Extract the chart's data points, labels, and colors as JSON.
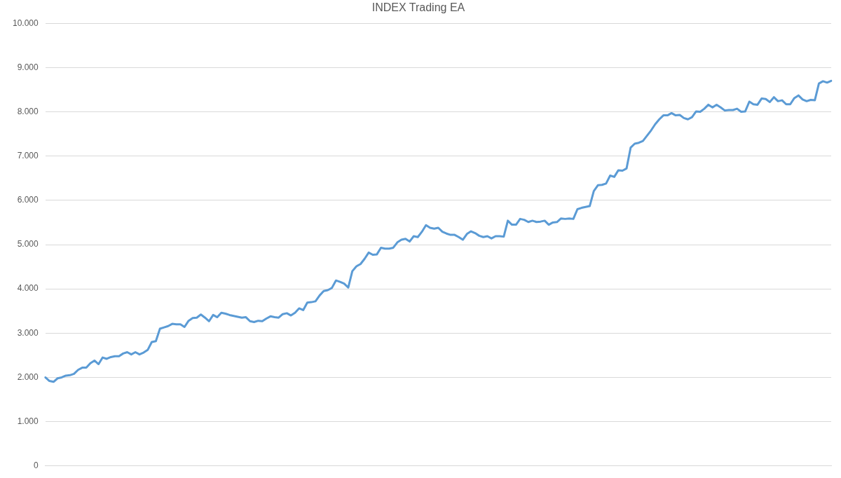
{
  "chart_data": {
    "type": "line",
    "title": "INDEX Trading EA",
    "categories": [
      null,
      null,
      null,
      null,
      null,
      null,
      null,
      null,
      null,
      null,
      null,
      null,
      null,
      null,
      null,
      null,
      null,
      null,
      null,
      null,
      null,
      null,
      null,
      null,
      null,
      null,
      null,
      null,
      null,
      null,
      null,
      null,
      null,
      null,
      null,
      null,
      null,
      null,
      null,
      null,
      null,
      null,
      null,
      null,
      null,
      null,
      null,
      null,
      null,
      null,
      null,
      null,
      null,
      null,
      null,
      null,
      null,
      null,
      null,
      null,
      null,
      null,
      null,
      null,
      null,
      null,
      null,
      null,
      null,
      null,
      null,
      null,
      null,
      null,
      null,
      null,
      null,
      null,
      null,
      null,
      null,
      null,
      null,
      null,
      null,
      null,
      null,
      null,
      null,
      null,
      null,
      null,
      null,
      null,
      null,
      null,
      null,
      null,
      null,
      null,
      null,
      null,
      null,
      null,
      null,
      null,
      null,
      null,
      null,
      null,
      null,
      null,
      null,
      null,
      null,
      null,
      null,
      null,
      null,
      null,
      null,
      null,
      null,
      null,
      null,
      null,
      null,
      null,
      null,
      null,
      null,
      null,
      null,
      null,
      null,
      null,
      null,
      null,
      null,
      null,
      null,
      null,
      null,
      null,
      null,
      null,
      null,
      null,
      null,
      null,
      null,
      null,
      null,
      null,
      null,
      null,
      null,
      null,
      null,
      null,
      null,
      null,
      null,
      null,
      null,
      null,
      null,
      null,
      null,
      null,
      null,
      null,
      null,
      null,
      null,
      null,
      null,
      null,
      null,
      null,
      null,
      null,
      null,
      null,
      null,
      null,
      null,
      null,
      null,
      null,
      null,
      null,
      null
    ],
    "series": [
      {
        "color": "#5b9bd5",
        "values": [
          2000,
          1920,
          1900,
          1980,
          2000,
          2040,
          2050,
          2080,
          2170,
          2220,
          2220,
          2320,
          2380,
          2300,
          2450,
          2420,
          2460,
          2480,
          2480,
          2540,
          2570,
          2520,
          2570,
          2520,
          2560,
          2620,
          2800,
          2820,
          3100,
          3130,
          3160,
          3210,
          3200,
          3200,
          3140,
          3280,
          3340,
          3350,
          3420,
          3350,
          3270,
          3410,
          3360,
          3460,
          3440,
          3410,
          3390,
          3370,
          3350,
          3360,
          3270,
          3250,
          3280,
          3270,
          3330,
          3380,
          3360,
          3350,
          3430,
          3450,
          3400,
          3460,
          3560,
          3520,
          3690,
          3700,
          3720,
          3850,
          3950,
          3970,
          4020,
          4190,
          4160,
          4120,
          4030,
          4400,
          4510,
          4560,
          4680,
          4820,
          4770,
          4780,
          4930,
          4910,
          4910,
          4930,
          5050,
          5110,
          5130,
          5070,
          5190,
          5170,
          5290,
          5440,
          5380,
          5360,
          5380,
          5290,
          5250,
          5220,
          5220,
          5170,
          5110,
          5240,
          5300,
          5260,
          5200,
          5170,
          5190,
          5140,
          5190,
          5190,
          5180,
          5540,
          5450,
          5450,
          5580,
          5560,
          5510,
          5540,
          5510,
          5520,
          5540,
          5450,
          5500,
          5510,
          5590,
          5580,
          5590,
          5580,
          5800,
          5830,
          5850,
          5870,
          6210,
          6340,
          6350,
          6380,
          6560,
          6530,
          6680,
          6670,
          6720,
          7190,
          7280,
          7300,
          7340,
          7460,
          7580,
          7720,
          7830,
          7920,
          7920,
          7970,
          7920,
          7930,
          7860,
          7830,
          7880,
          8010,
          8000,
          8070,
          8160,
          8100,
          8160,
          8100,
          8030,
          8040,
          8040,
          8070,
          8000,
          8010,
          8230,
          8170,
          8160,
          8300,
          8290,
          8220,
          8330,
          8240,
          8260,
          8170,
          8170,
          8310,
          8370,
          8280,
          8240,
          8270,
          8260,
          8640,
          8690,
          8660,
          8700
        ]
      }
    ],
    "ylim": [
      0,
      10000
    ],
    "yticks": [
      0,
      {
        "value": 1000,
        "label": "1.000"
      },
      {
        "value": 2000,
        "label": "2.000"
      },
      {
        "value": 3000,
        "label": "3.000"
      },
      {
        "value": 4000,
        "label": "4.000"
      },
      {
        "value": 5000,
        "label": "5.000"
      },
      {
        "value": 6000,
        "label": "6.000"
      },
      {
        "value": 7000,
        "label": "7.000"
      },
      {
        "value": 8000,
        "label": "8.000"
      },
      {
        "value": 9000,
        "label": "9.000"
      },
      {
        "value": 10000,
        "label": "10.000"
      }
    ],
    "grid": "y",
    "legend": false,
    "marker": "none",
    "line_style": "solid",
    "tick_labels": "y"
  }
}
